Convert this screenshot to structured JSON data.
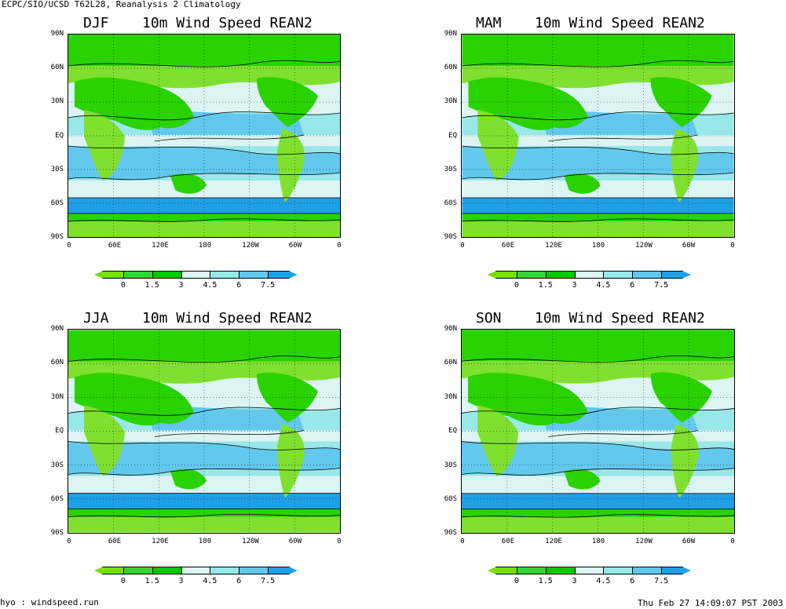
{
  "header": {
    "top_left": "ECPC/SIO/UCSD T62L28, Reanalysis 2 Climatology",
    "bottom_left": "hyo : windspeed.run",
    "bottom_right": "Thu Feb 27 14:09:07 PST 2003"
  },
  "panels": [
    {
      "season": "DJF",
      "title": "10m Wind Speed  REAN2"
    },
    {
      "season": "MAM",
      "title": "10m Wind Speed  REAN2"
    },
    {
      "season": "JJA",
      "title": "10m Wind Speed  REAN2"
    },
    {
      "season": "SON",
      "title": "10m Wind Speed  REAN2"
    }
  ],
  "axes": {
    "lat_labels": [
      "90N",
      "60N",
      "30N",
      "EQ",
      "30S",
      "60S",
      "90S"
    ],
    "lon_labels": [
      "0",
      "60E",
      "120E",
      "180",
      "120W",
      "60W",
      "0"
    ]
  },
  "colorbar": {
    "labels": [
      "0",
      "1.5",
      "3",
      "4.5",
      "6",
      "7.5"
    ],
    "colors": [
      "#76e000",
      "#36d438",
      "#00c800",
      "#dcf4f4",
      "#98e8ea",
      "#62c8ee",
      "#1fa0e6"
    ]
  },
  "colors": {
    "land_low": "#2ad200",
    "land_mid": "#80e030",
    "ocean_light": "#dcf4f4",
    "ocean_mid": "#98e8ea",
    "ocean_strong": "#62c8ee",
    "ocean_max": "#1fa0e6"
  }
}
